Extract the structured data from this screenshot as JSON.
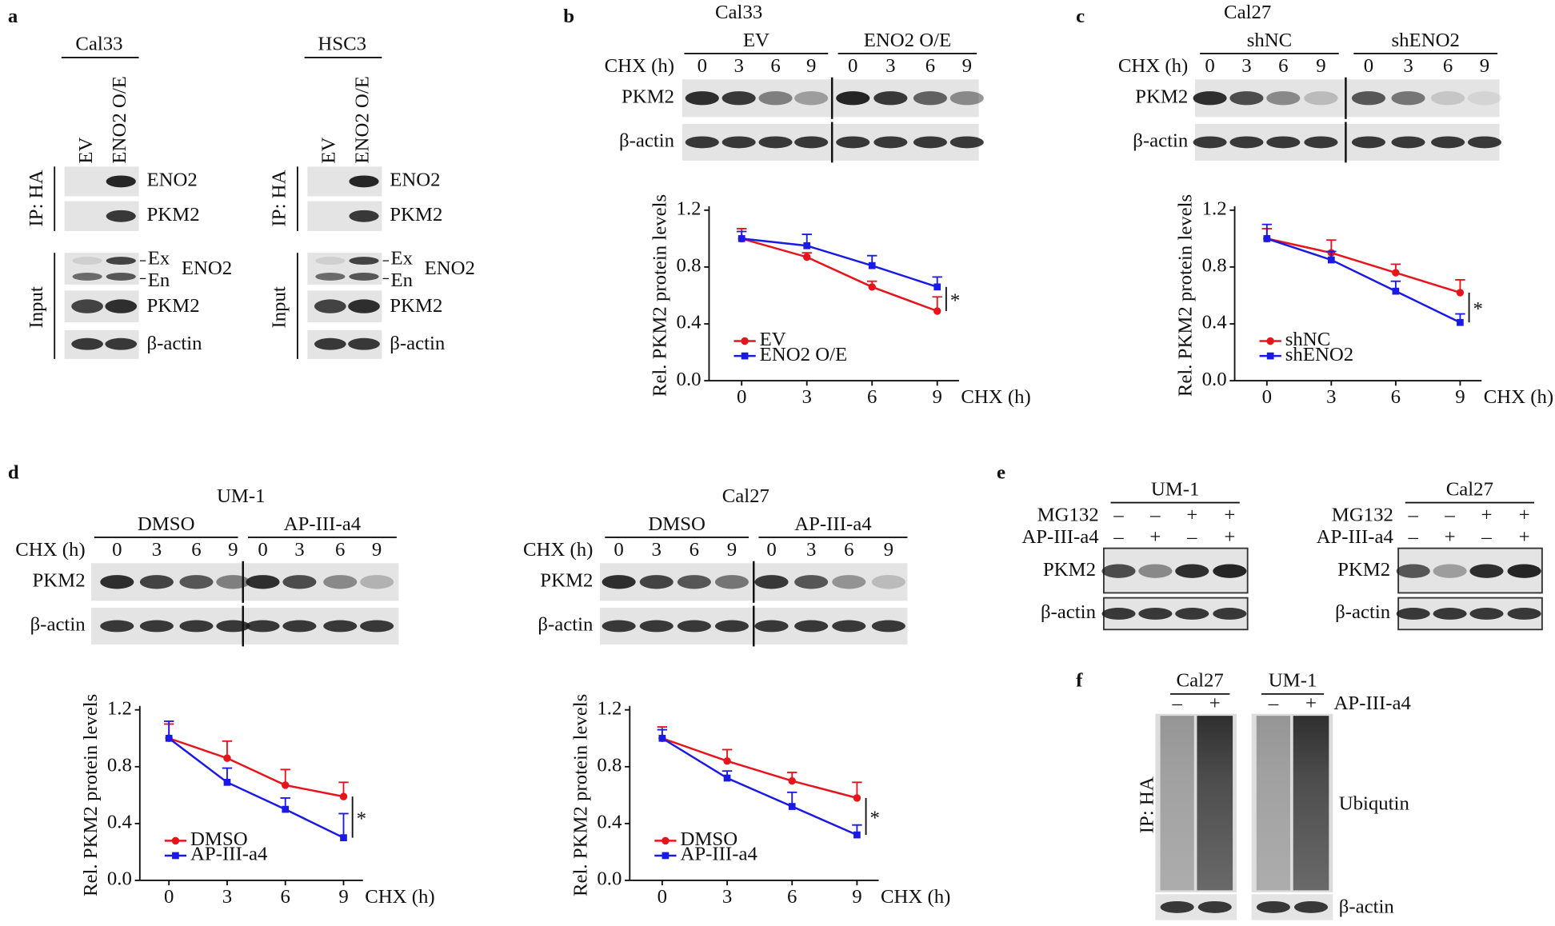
{
  "panel_labels": [
    "a",
    "b",
    "c",
    "d",
    "e",
    "f"
  ],
  "a": {
    "groups": [
      {
        "cell": "Cal33",
        "lanes": [
          "EV",
          "ENO2 O/E"
        ],
        "ip": "IP: HA",
        "input": "Input",
        "ip_rows": [
          "ENO2",
          "PKM2"
        ],
        "input_rows": [
          "ENO2",
          "PKM2",
          "β-actin"
        ],
        "markers": [
          "Ex",
          "En"
        ]
      },
      {
        "cell": "HSC3",
        "lanes": [
          "EV",
          "ENO2 O/E"
        ],
        "ip": "IP: HA",
        "input": "Input",
        "ip_rows": [
          "ENO2",
          "PKM2"
        ],
        "input_rows": [
          "ENO2",
          "PKM2",
          "β-actin"
        ],
        "markers": [
          "Ex",
          "En"
        ]
      }
    ]
  },
  "b": {
    "cell": "Cal33",
    "groups": [
      "EV",
      "ENO2 O/E"
    ],
    "time_label": "CHX (h)",
    "times": [
      "0",
      "3",
      "6",
      "9",
      "0",
      "3",
      "6",
      "9"
    ],
    "rows": [
      "PKM2",
      "β-actin"
    ]
  },
  "c": {
    "cell": "Cal27",
    "groups": [
      "shNC",
      "shENO2"
    ],
    "time_label": "CHX (h)",
    "times": [
      "0",
      "3",
      "6",
      "9",
      "0",
      "3",
      "6",
      "9"
    ],
    "rows": [
      "PKM2",
      "β-actin"
    ]
  },
  "d": {
    "blots": [
      {
        "cell": "UM-1",
        "groups": [
          "DMSO",
          "AP-III-a4"
        ],
        "time_label": "CHX (h)",
        "times": [
          "0",
          "3",
          "6",
          "9",
          "0",
          "3",
          "6",
          "9"
        ],
        "rows": [
          "PKM2",
          "β-actin"
        ]
      },
      {
        "cell": "Cal27",
        "groups": [
          "DMSO",
          "AP-III-a4"
        ],
        "time_label": "CHX (h)",
        "times": [
          "0",
          "3",
          "6",
          "9",
          "0",
          "3",
          "6",
          "9"
        ],
        "rows": [
          "PKM2",
          "β-actin"
        ]
      }
    ]
  },
  "e": {
    "blots": [
      {
        "cell": "UM-1",
        "treatments": [
          {
            "name": "MG132",
            "signs": [
              "–",
              "–",
              "+",
              "+"
            ]
          },
          {
            "name": "AP-III-a4",
            "signs": [
              "–",
              "+",
              "–",
              "+"
            ]
          }
        ],
        "rows": [
          "PKM2",
          "β-actin"
        ]
      },
      {
        "cell": "Cal27",
        "treatments": [
          {
            "name": "MG132",
            "signs": [
              "–",
              "–",
              "+",
              "+"
            ]
          },
          {
            "name": "AP-III-a4",
            "signs": [
              "–",
              "+",
              "–",
              "+"
            ]
          }
        ],
        "rows": [
          "PKM2",
          "β-actin"
        ]
      }
    ]
  },
  "f": {
    "groups": [
      {
        "cell": "Cal27",
        "signs": [
          "–",
          "+"
        ]
      },
      {
        "cell": "UM-1",
        "signs": [
          "–",
          "+"
        ]
      }
    ],
    "treatment": "AP-III-a4",
    "ip": "IP: HA",
    "rows": [
      "Ubiqutin",
      "β-actin"
    ]
  },
  "chart_data": [
    {
      "type": "line",
      "ylabel": "Rel. PKM2 protein levels",
      "xlabel": "CHX (h)",
      "x": [
        0,
        3,
        6,
        9
      ],
      "xlim": [
        -1.5,
        10
      ],
      "xticks": [
        0,
        3,
        6,
        9
      ],
      "ylim": [
        0,
        1.2
      ],
      "yticks": [
        {
          "value": 0,
          "label": "0.0"
        },
        0.4,
        0.8,
        1.2
      ],
      "legend": "lower left",
      "annotation": "*",
      "series": [
        {
          "name": "EV",
          "color": "#e8141b",
          "marker": "circle",
          "values": [
            1.0,
            0.87,
            0.66,
            0.49
          ],
          "errors": [
            0.07,
            0.03,
            0.04,
            0.1
          ]
        },
        {
          "name": "ENO2 O/E",
          "color": "#1a1ae6",
          "marker": "square",
          "values": [
            1.0,
            0.95,
            0.81,
            0.66
          ],
          "errors": [
            0.05,
            0.08,
            0.07,
            0.07
          ]
        }
      ]
    },
    {
      "type": "line",
      "ylabel": "Rel. PKM2 protein levels",
      "xlabel": "CHX (h)",
      "x": [
        0,
        3,
        6,
        9
      ],
      "xlim": [
        -1.5,
        10
      ],
      "xticks": [
        0,
        3,
        6,
        9
      ],
      "ylim": [
        0,
        1.2
      ],
      "yticks": [
        {
          "value": 0,
          "label": "0.0"
        },
        0.4,
        0.8,
        1.2
      ],
      "legend": "lower left",
      "annotation": "*",
      "series": [
        {
          "name": "shNC",
          "color": "#e8141b",
          "marker": "circle",
          "values": [
            1.0,
            0.9,
            0.76,
            0.62
          ],
          "errors": [
            0.07,
            0.09,
            0.06,
            0.09
          ]
        },
        {
          "name": "shENO2",
          "color": "#1a1ae6",
          "marker": "square",
          "values": [
            1.0,
            0.85,
            0.63,
            0.41
          ],
          "errors": [
            0.1,
            0.06,
            0.07,
            0.06
          ]
        }
      ]
    },
    {
      "type": "line",
      "ylabel": "Rel. PKM2 protein levels",
      "xlabel": "CHX (h)",
      "x": [
        0,
        3,
        6,
        9
      ],
      "xlim": [
        -1.5,
        10
      ],
      "xticks": [
        0,
        3,
        6,
        9
      ],
      "ylim": [
        0,
        1.2
      ],
      "yticks": [
        {
          "value": 0,
          "label": "0.0"
        },
        0.4,
        0.8,
        1.2
      ],
      "legend": "lower left",
      "annotation": "*",
      "series": [
        {
          "name": "DMSO",
          "color": "#e8141b",
          "marker": "circle",
          "values": [
            1.0,
            0.86,
            0.67,
            0.59
          ],
          "errors": [
            0.1,
            0.12,
            0.11,
            0.1
          ]
        },
        {
          "name": "AP-III-a4",
          "color": "#1a1ae6",
          "marker": "square",
          "values": [
            1.0,
            0.69,
            0.5,
            0.3
          ],
          "errors": [
            0.12,
            0.1,
            0.08,
            0.17
          ]
        }
      ]
    },
    {
      "type": "line",
      "ylabel": "Rel. PKM2 protein levels",
      "xlabel": "CHX (h)",
      "x": [
        0,
        3,
        6,
        9
      ],
      "xlim": [
        -1.5,
        10
      ],
      "xticks": [
        0,
        3,
        6,
        9
      ],
      "ylim": [
        0,
        1.2
      ],
      "yticks": [
        {
          "value": 0,
          "label": "0.0"
        },
        0.4,
        0.8,
        1.2
      ],
      "legend": "lower left",
      "annotation": "*",
      "series": [
        {
          "name": "DMSO",
          "color": "#e8141b",
          "marker": "circle",
          "values": [
            1.0,
            0.84,
            0.7,
            0.58
          ],
          "errors": [
            0.08,
            0.08,
            0.06,
            0.11
          ]
        },
        {
          "name": "AP-III-a4",
          "color": "#1a1ae6",
          "marker": "square",
          "values": [
            1.0,
            0.72,
            0.52,
            0.32
          ],
          "errors": [
            0.06,
            0.05,
            0.1,
            0.07
          ]
        }
      ]
    }
  ]
}
